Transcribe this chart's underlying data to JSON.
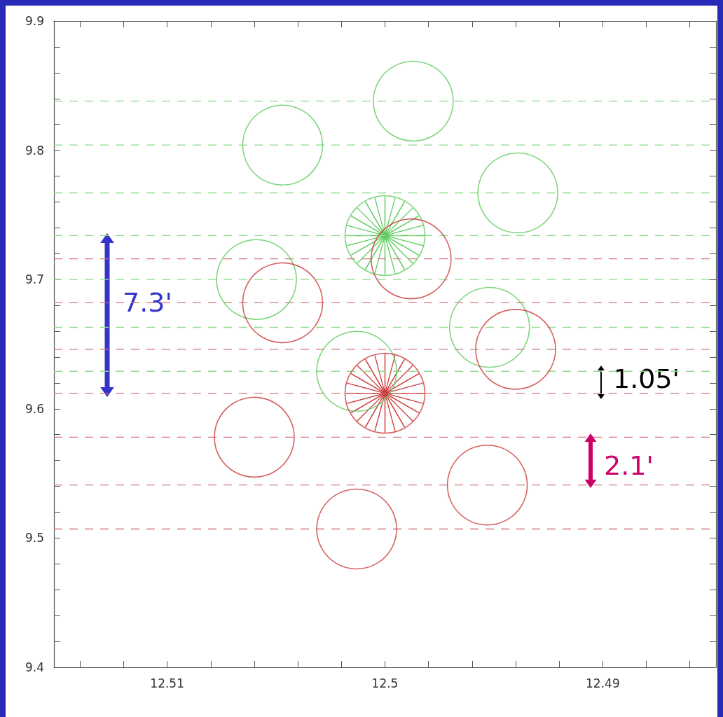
{
  "chart_data": {
    "type": "scatter",
    "marker": "circle",
    "grid": false,
    "xlim": [
      12.5152,
      12.4848
    ],
    "xticks": [
      {
        "value": 12.514,
        "label": null
      },
      {
        "value": 12.512,
        "label": null
      },
      12.51,
      {
        "value": 12.508,
        "label": null
      },
      {
        "value": 12.506,
        "label": null
      },
      {
        "value": 12.504,
        "label": null
      },
      {
        "value": 12.502,
        "label": null
      },
      12.5,
      {
        "value": 12.498,
        "label": null
      },
      {
        "value": 12.496,
        "label": null
      },
      {
        "value": 12.494,
        "label": null
      },
      {
        "value": 12.492,
        "label": null
      },
      12.49,
      {
        "value": 12.488,
        "label": null
      },
      {
        "value": 12.486,
        "label": null
      }
    ],
    "ylim": [
      9.4,
      9.9
    ],
    "yticks": [
      9.4,
      {
        "value": 9.42,
        "label": null
      },
      {
        "value": 9.44,
        "label": null
      },
      {
        "value": 9.46,
        "label": null
      },
      {
        "value": 9.48,
        "label": null
      },
      9.5,
      {
        "value": 9.52,
        "label": null
      },
      {
        "value": 9.54,
        "label": null
      },
      {
        "value": 9.56,
        "label": null
      },
      {
        "value": 9.58,
        "label": null
      },
      9.6,
      {
        "value": 9.62,
        "label": null
      },
      {
        "value": 9.64,
        "label": null
      },
      {
        "value": 9.66,
        "label": null
      },
      {
        "value": 9.68,
        "label": null
      },
      9.7,
      {
        "value": 9.72,
        "label": null
      },
      {
        "value": 9.74,
        "label": null
      },
      {
        "value": 9.76,
        "label": null
      },
      {
        "value": 9.78,
        "label": null
      },
      9.8,
      {
        "value": 9.82,
        "label": null
      },
      {
        "value": 9.84,
        "label": null
      },
      {
        "value": 9.86,
        "label": null
      },
      {
        "value": 9.88,
        "label": null
      },
      9.9
    ],
    "series": [
      {
        "color": "#5ccc5c",
        "x": [
          12.4987,
          12.5047,
          12.4939,
          12.5,
          12.5059,
          12.4952,
          12.5013
        ],
        "values": [
          9.838,
          9.804,
          9.767,
          9.734,
          9.7,
          9.663,
          9.629
        ]
      },
      {
        "color": "#cc3b3b",
        "x": [
          12.4988,
          12.5047,
          12.494,
          12.5,
          12.506,
          12.4953,
          12.5013
        ],
        "values": [
          9.716,
          9.682,
          9.646,
          9.612,
          9.578,
          9.541,
          9.507
        ]
      }
    ],
    "ref_lines": [
      {
        "axis": "y",
        "value": 9.838,
        "color": "#8fdc8f",
        "line_style": "dashed"
      },
      {
        "axis": "y",
        "value": 9.804,
        "color": "#8fdc8f",
        "line_style": "dashed"
      },
      {
        "axis": "y",
        "value": 9.767,
        "color": "#8fdc8f",
        "line_style": "dashed"
      },
      {
        "axis": "y",
        "value": 9.734,
        "color": "#8fdc8f",
        "line_style": "dashed"
      },
      {
        "axis": "y",
        "value": 9.7,
        "color": "#8fdc8f",
        "line_style": "dashed"
      },
      {
        "axis": "y",
        "value": 9.663,
        "color": "#8fdc8f",
        "line_style": "dashed"
      },
      {
        "axis": "y",
        "value": 9.629,
        "color": "#8fdc8f",
        "line_style": "dashed"
      },
      {
        "axis": "y",
        "value": 9.716,
        "color": "#d07a7a",
        "line_style": "dashed"
      },
      {
        "axis": "y",
        "value": 9.682,
        "color": "#d07a7a",
        "line_style": "dashed"
      },
      {
        "axis": "y",
        "value": 9.646,
        "color": "#d07a7a",
        "line_style": "dashed"
      },
      {
        "axis": "y",
        "value": 9.612,
        "color": "#d07a7a",
        "line_style": "dashed"
      },
      {
        "axis": "y",
        "value": 9.578,
        "color": "#d07a7a",
        "line_style": "dashed"
      },
      {
        "axis": "y",
        "value": 9.541,
        "color": "#d07a7a",
        "line_style": "dashed"
      },
      {
        "axis": "y",
        "value": 9.507,
        "color": "#d07a7a",
        "line_style": "dashed"
      }
    ],
    "annotations": [
      "7.3'",
      "1.05'",
      "2.1'"
    ]
  }
}
